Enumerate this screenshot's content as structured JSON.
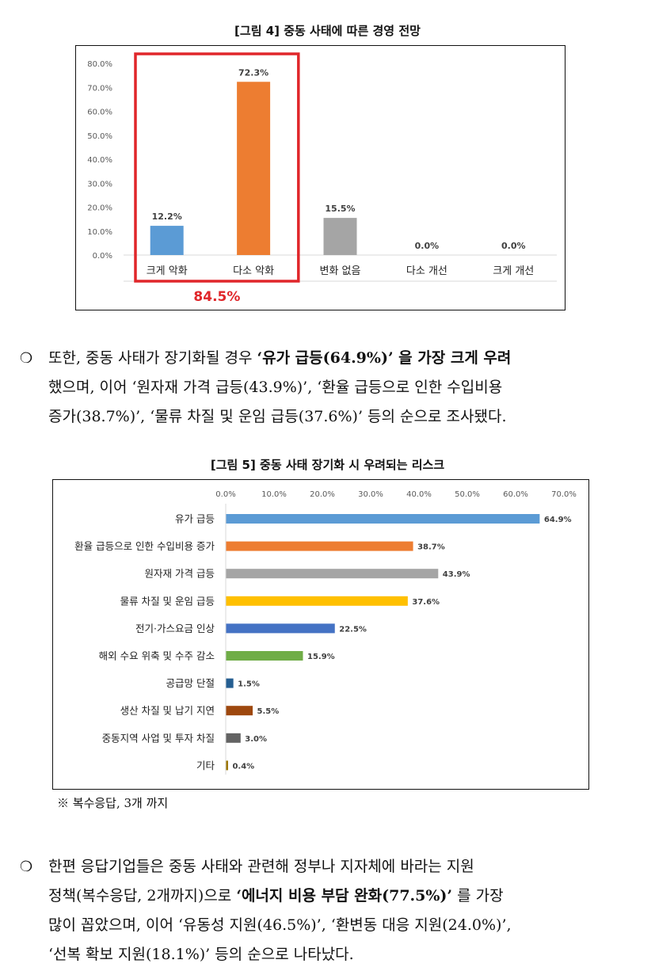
{
  "figure4": {
    "title": "[그림 4] 중동 사태에 따른 경영 전망",
    "highlight_total": "84.5%",
    "chart_data": {
      "type": "bar",
      "title": "",
      "categories": [
        "크게 악화",
        "다소 악화",
        "변화 없음",
        "다소 개선",
        "크게 개선"
      ],
      "values": [
        12.2,
        72.3,
        15.5,
        0.0,
        0.0
      ],
      "value_labels": [
        "12.2%",
        "72.3%",
        "15.5%",
        "0.0%",
        "0.0%"
      ],
      "colors": [
        "#5b9bd5",
        "#ed7d31",
        "#a5a5a5",
        "#ffc000",
        "#4472c4"
      ],
      "ylim": [
        0,
        80
      ],
      "yticks": [
        "0.0%",
        "10.0%",
        "20.0%",
        "30.0%",
        "40.0%",
        "50.0%",
        "60.0%",
        "70.0%",
        "80.0%"
      ],
      "grid": false,
      "legend": "none",
      "highlight_color": "#e0262a"
    }
  },
  "paragraph1": {
    "bullet": "❍",
    "lines": [
      [
        "또한, 중동 사태가 장기화될 경우 ",
        "‘유가 급등(64.9%)’ 을 가장 크게 우려",
        ""
      ],
      [
        "했으며, 이어 ‘원자재 가격 급등(43.9%)’, ‘환율 급등으로 인한 수입비용",
        "",
        ""
      ],
      [
        "증가(38.7%)’, ‘물류 차질 및 운임 급등(37.6%)’ 등의 순으로 조사됐다.",
        "",
        ""
      ]
    ]
  },
  "figure5": {
    "title": "[그림 5] 중동 사태 장기화 시 우려되는 리스크",
    "chart_data": {
      "type": "bar",
      "orientation": "horizontal",
      "title": "",
      "categories": [
        "유가 급등",
        "환율 급등으로 인한 수입비용 증가",
        "원자재 가격 급등",
        "물류 차질 및 운임 급등",
        "전기·가스요금 인상",
        "해외 수요 위축 및 수주 감소",
        "공급망 단절",
        "생산 차질 및 납기 지연",
        "중동지역 사업 및 투자 차질",
        "기타"
      ],
      "values": [
        64.9,
        38.7,
        43.9,
        37.6,
        22.5,
        15.9,
        1.5,
        5.5,
        3.0,
        0.4
      ],
      "value_labels": [
        "64.9%",
        "38.7%",
        "43.9%",
        "37.6%",
        "22.5%",
        "15.9%",
        "1.5%",
        "5.5%",
        "3.0%",
        "0.4%"
      ],
      "colors": [
        "#5b9bd5",
        "#ed7d31",
        "#a5a5a5",
        "#ffc000",
        "#4472c4",
        "#70ad47",
        "#255e91",
        "#9e480e",
        "#636363",
        "#997300"
      ],
      "xlim": [
        0,
        70
      ],
      "xticks": [
        "0.0%",
        "10.0%",
        "20.0%",
        "30.0%",
        "40.0%",
        "50.0%",
        "60.0%",
        "70.0%"
      ],
      "xaxis_position": "top",
      "grid": false,
      "legend": "none"
    }
  },
  "footnote": "※ 복수응답, 3개 까지",
  "paragraph2": {
    "bullet": "❍",
    "lines": [
      [
        "한편 응답기업들은 중동 사태와 관련해 정부나 지자체에 바라는 지원",
        "",
        ""
      ],
      [
        "정책(복수응답, 2개까지)으로 ",
        "‘에너지 비용 부담 완화(77.5%)’",
        " 를 가장"
      ],
      [
        "많이 꼽았으며, 이어 ‘유동성 지원(46.5%)’, ‘환변동 대응 지원(24.0%)’,",
        "",
        ""
      ],
      [
        "‘선복 확보 지원(18.1%)’ 등의 순으로 나타났다.",
        "",
        ""
      ]
    ]
  }
}
